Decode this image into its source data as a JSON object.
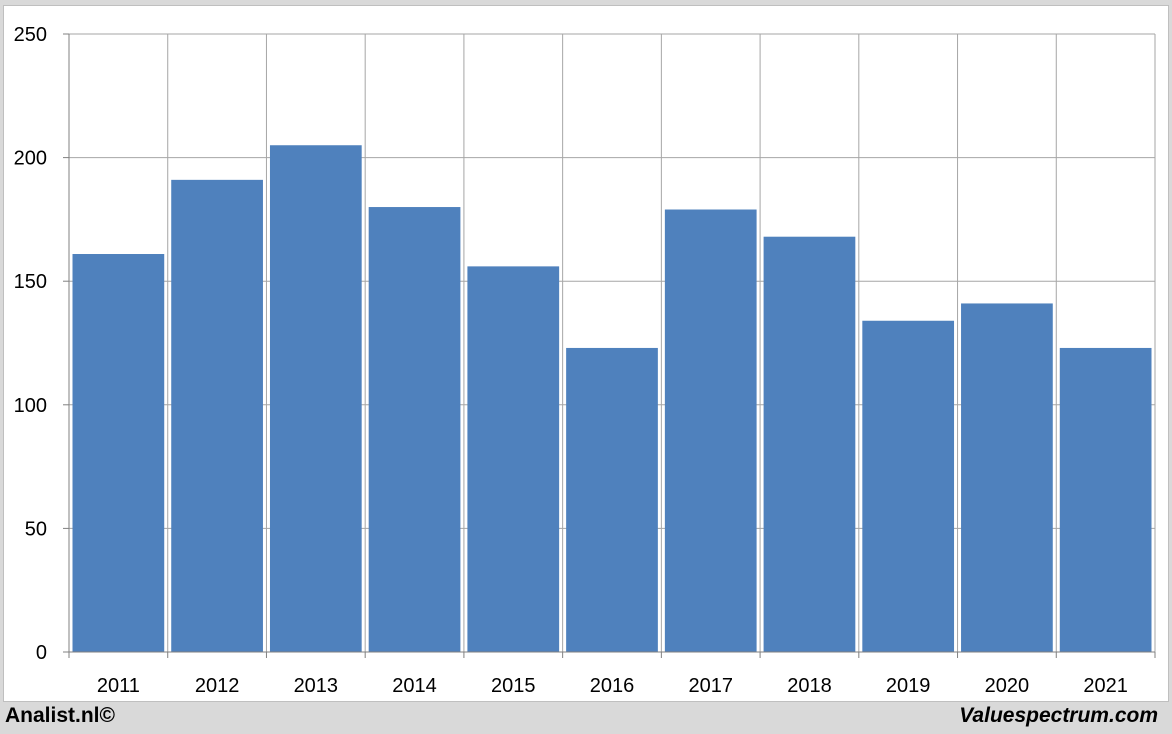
{
  "chart_data": {
    "type": "bar",
    "categories": [
      "2011",
      "2012",
      "2013",
      "2014",
      "2015",
      "2016",
      "2017",
      "2018",
      "2019",
      "2020",
      "2021"
    ],
    "values": [
      161,
      191,
      205,
      180,
      156,
      123,
      179,
      168,
      134,
      141,
      123
    ],
    "yticks": [
      "0",
      "50",
      "100",
      "150",
      "200",
      "250"
    ],
    "ylim": [
      0,
      250
    ],
    "grid": true,
    "title": "",
    "xlabel": "",
    "ylabel": "",
    "bar_color": "#4f81bd",
    "grid_color": "#a6a6a6"
  },
  "footer": {
    "left": "Analist.nl©",
    "right": "Valuespectrum.com"
  }
}
